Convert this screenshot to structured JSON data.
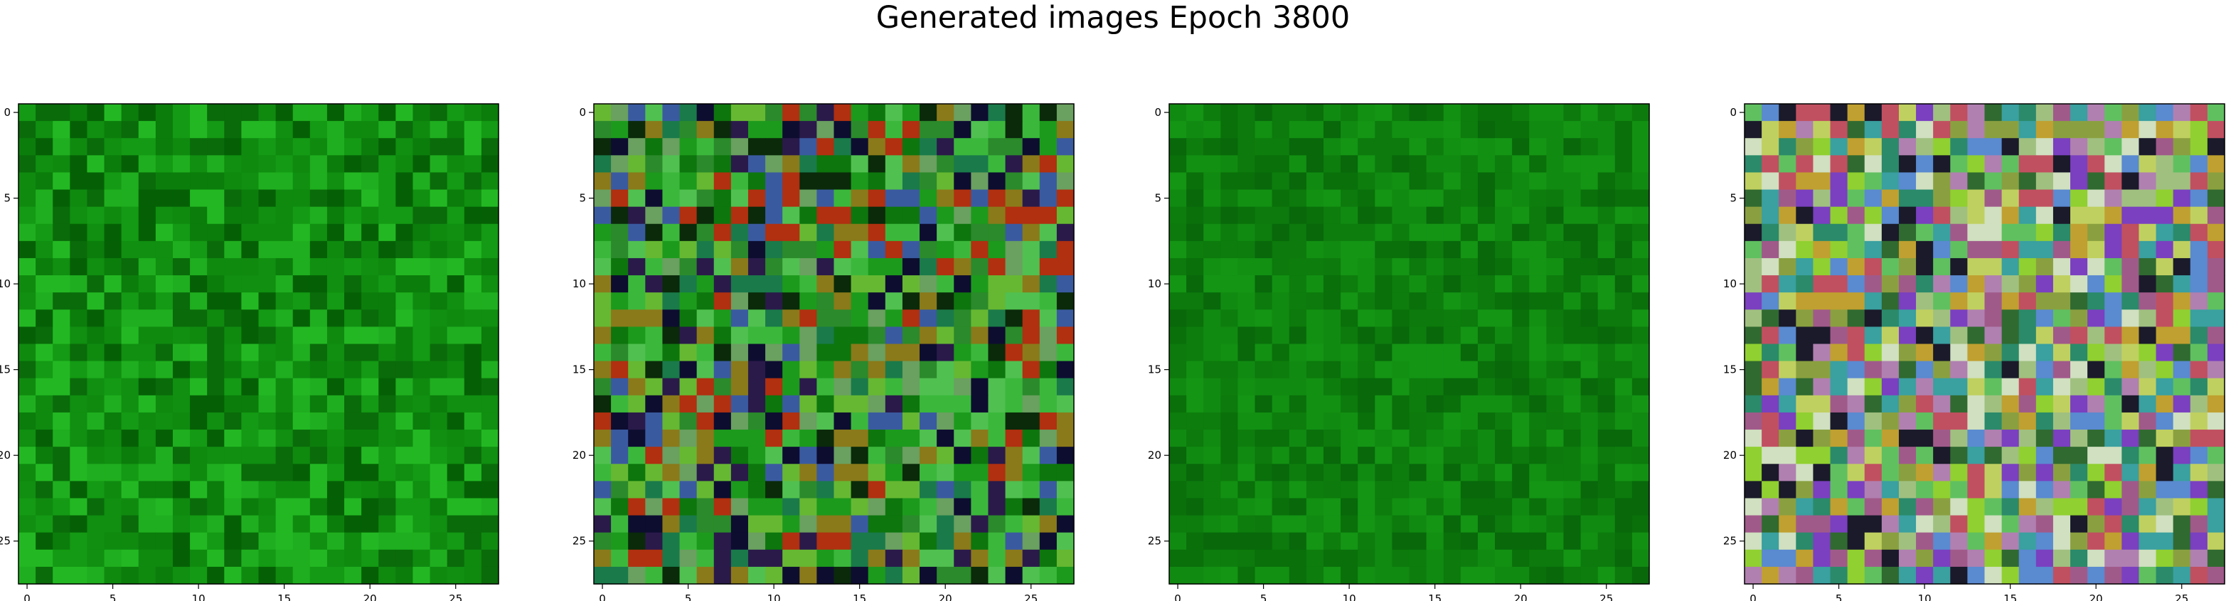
{
  "figure": {
    "title": "Generated images Epoch 3800"
  },
  "chart_data": [
    {
      "type": "heatmap",
      "grid_size": 28,
      "x_ticks": [
        0,
        5,
        10,
        15,
        20,
        25
      ],
      "y_ticks": [
        0,
        5,
        10,
        15,
        20,
        25
      ],
      "xlim": [
        -0.5,
        27.5
      ],
      "ylim": [
        27.5,
        -0.5
      ],
      "palette": "mostly green",
      "colors": [
        "#0b7d0b",
        "#149a14",
        "#0a6b0a",
        "#1fae1f",
        "#0f8a0f",
        "#056005",
        "#23b823",
        "#108f10"
      ],
      "seed": 11
    },
    {
      "type": "heatmap",
      "grid_size": 28,
      "x_ticks": [
        0,
        5,
        10,
        15,
        20,
        25
      ],
      "y_ticks": [
        0,
        5,
        10,
        15,
        20,
        25
      ],
      "xlim": [
        -0.5,
        27.5
      ],
      "ylim": [
        27.5,
        -0.5
      ],
      "palette": "green with dark and colored noise in center",
      "colors": [
        "#1c9a1c",
        "#3bb83b",
        "#0d760d",
        "#66b832",
        "#1a7a4a",
        "#0a2a0a",
        "#2a1a4a",
        "#8a7a1a",
        "#b03010",
        "#3a5aa0",
        "#50c050",
        "#0d0d30",
        "#6aa060",
        "#2b8a2b"
      ],
      "seed": 29
    },
    {
      "type": "heatmap",
      "grid_size": 28,
      "x_ticks": [
        0,
        5,
        10,
        15,
        20,
        25
      ],
      "y_ticks": [
        0,
        5,
        10,
        15,
        20,
        25
      ],
      "xlim": [
        -0.5,
        27.5
      ],
      "ylim": [
        27.5,
        -0.5
      ],
      "palette": "smooth green",
      "colors": [
        "#0d7d0d",
        "#118a11",
        "#0a700a",
        "#149514",
        "#0c7a0c",
        "#08680a",
        "#129012"
      ],
      "seed": 47
    },
    {
      "type": "heatmap",
      "grid_size": 28,
      "x_ticks": [
        0,
        5,
        10,
        15,
        20,
        25
      ],
      "y_ticks": [
        0,
        5,
        10,
        15,
        20,
        25
      ],
      "xlim": [
        -0.5,
        27.5
      ],
      "ylim": [
        27.5,
        -0.5
      ],
      "palette": "multicolor noise",
      "colors": [
        "#8aa040",
        "#c0a030",
        "#a05a8a",
        "#3aa0a0",
        "#60c060",
        "#c0d060",
        "#2a8a6a",
        "#7a40c0",
        "#d0e0c0",
        "#a0c080",
        "#1a1a2a",
        "#c05060",
        "#5a8ad0",
        "#90d030",
        "#b080b0",
        "#306a30"
      ],
      "seed": 83
    }
  ]
}
